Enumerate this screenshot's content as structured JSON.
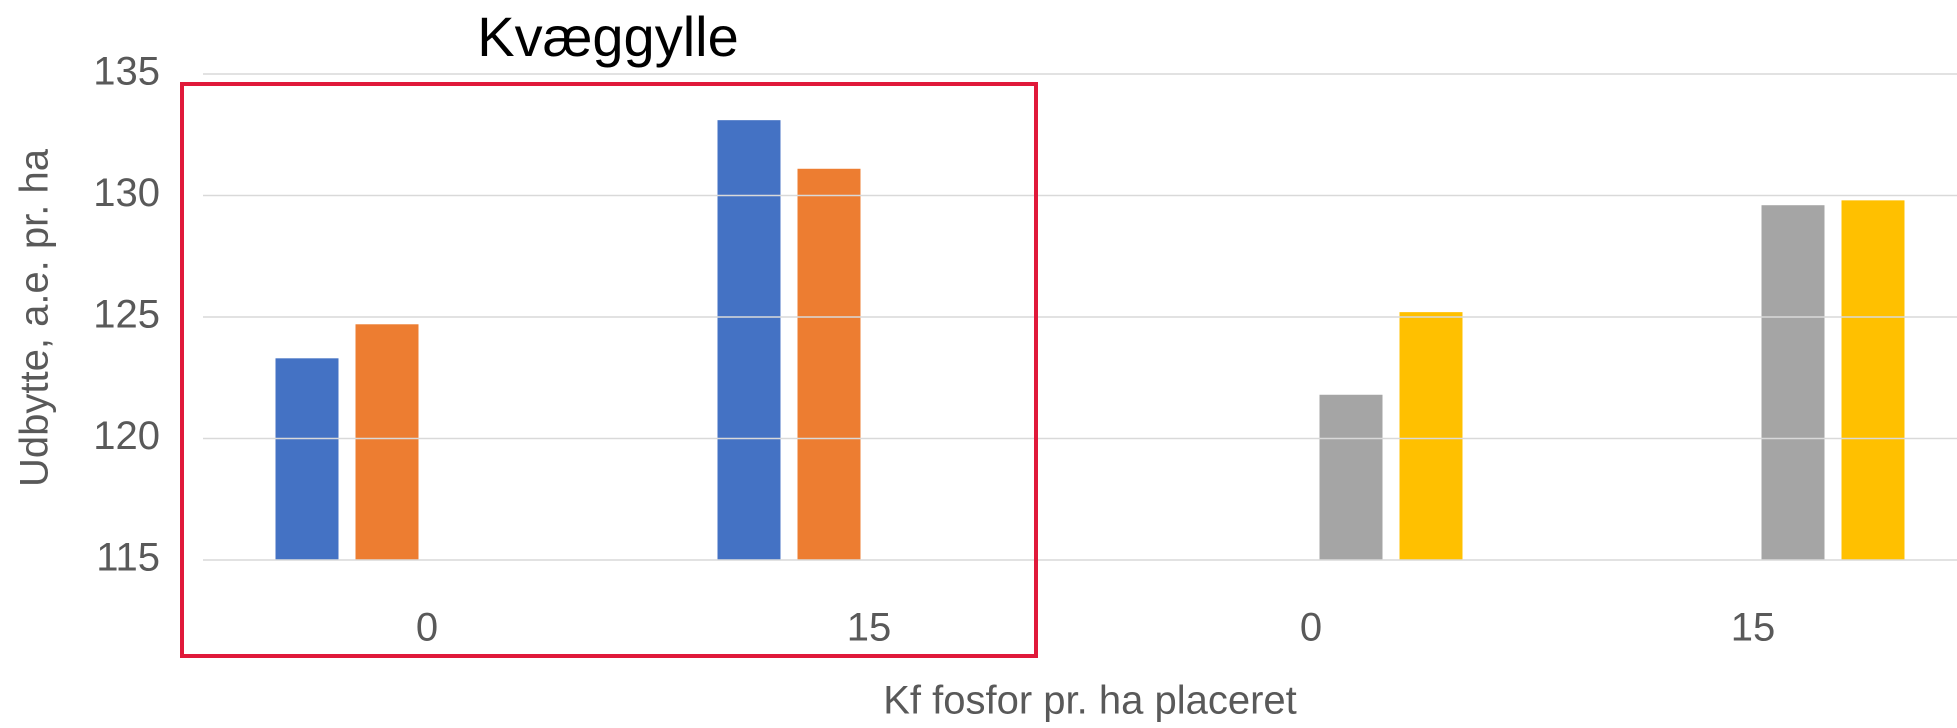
{
  "chart_data": {
    "type": "bar",
    "annotation": "Kvæggylle",
    "x_label": "Kf fosfor pr. ha placeret",
    "y_label": "Udbytte, a.e. pr. ha",
    "categories": [
      "0",
      "15",
      "0",
      "15"
    ],
    "series": [
      {
        "color": "#4472c4",
        "values": [
          123.3,
          133.1,
          null,
          null
        ]
      },
      {
        "color": "#ed7d31",
        "values": [
          124.7,
          131.1,
          null,
          null
        ]
      },
      {
        "color": "#a5a5a5",
        "values": [
          null,
          null,
          121.8,
          129.6
        ]
      },
      {
        "color": "#ffc000",
        "values": [
          null,
          null,
          125.2,
          129.8
        ]
      }
    ],
    "ylim": [
      115,
      135
    ],
    "yticks": [
      115,
      120,
      125,
      130,
      135
    ],
    "grid": true
  }
}
